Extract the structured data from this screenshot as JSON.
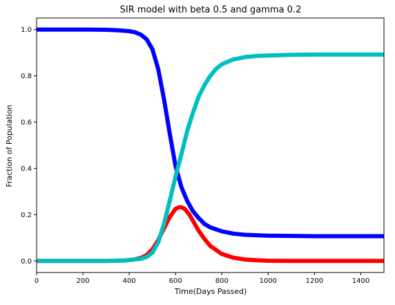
{
  "chart_data": {
    "type": "line",
    "title": "SIR model with beta 0.5 and gamma 0.2",
    "xlabel": "Time(Days Passed)",
    "ylabel": "Fraction of Population",
    "xlim": [
      0,
      1500
    ],
    "ylim": [
      -0.05,
      1.05
    ],
    "xticks": [
      0,
      200,
      400,
      600,
      800,
      1000,
      1200,
      1400
    ],
    "xtick_labels": [
      "0",
      "200",
      "400",
      "600",
      "800",
      "1000",
      "1200",
      "1400"
    ],
    "yticks": [
      0.0,
      0.2,
      0.4,
      0.6,
      0.8,
      1.0
    ],
    "ytick_labels": [
      "0.0",
      "0.2",
      "0.4",
      "0.6",
      "0.8",
      "1.0"
    ],
    "grid": false,
    "legend": "none",
    "series": [
      {
        "color": "#0000ff",
        "x": [
          0,
          100,
          200,
          300,
          350,
          400,
          425,
          450,
          475,
          500,
          525,
          550,
          575,
          600,
          625,
          650,
          675,
          700,
          725,
          750,
          800,
          850,
          900,
          1000,
          1100,
          1200,
          1300,
          1400,
          1500
        ],
        "y": [
          1.0,
          1.0,
          1.0,
          0.999,
          0.997,
          0.993,
          0.988,
          0.978,
          0.958,
          0.915,
          0.83,
          0.7,
          0.55,
          0.41,
          0.32,
          0.26,
          0.215,
          0.185,
          0.16,
          0.145,
          0.128,
          0.118,
          0.113,
          0.109,
          0.108,
          0.107,
          0.107,
          0.107,
          0.107
        ]
      },
      {
        "color": "#ff0000",
        "x": [
          0,
          300,
          380,
          420,
          450,
          475,
          500,
          525,
          550,
          575,
          600,
          615,
          625,
          640,
          660,
          680,
          700,
          725,
          750,
          800,
          850,
          900,
          950,
          1000,
          1100,
          1200,
          1300,
          1400,
          1500
        ],
        "y": [
          0.0,
          0.0,
          0.002,
          0.006,
          0.013,
          0.025,
          0.05,
          0.09,
          0.14,
          0.19,
          0.225,
          0.232,
          0.232,
          0.225,
          0.2,
          0.165,
          0.13,
          0.095,
          0.065,
          0.03,
          0.014,
          0.006,
          0.003,
          0.001,
          0.0,
          0.0,
          0.0,
          0.0,
          0.0
        ]
      },
      {
        "color": "#00bfbf",
        "x": [
          0,
          300,
          380,
          420,
          450,
          475,
          500,
          525,
          550,
          575,
          600,
          625,
          650,
          675,
          700,
          725,
          750,
          775,
          800,
          850,
          900,
          950,
          1000,
          1100,
          1200,
          1300,
          1400,
          1500
        ],
        "y": [
          0.0,
          0.0,
          0.002,
          0.006,
          0.009,
          0.017,
          0.035,
          0.08,
          0.16,
          0.26,
          0.365,
          0.46,
          0.56,
          0.64,
          0.71,
          0.76,
          0.8,
          0.83,
          0.85,
          0.871,
          0.881,
          0.886,
          0.888,
          0.891,
          0.892,
          0.892,
          0.892,
          0.892
        ]
      }
    ]
  }
}
